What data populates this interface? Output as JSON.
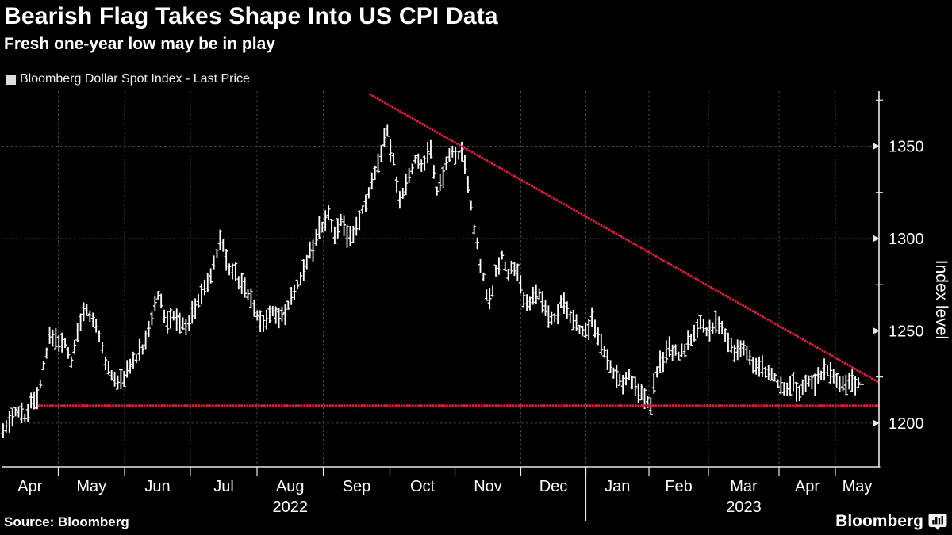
{
  "header": {
    "title": "Bearish Flag Takes Shape Into US CPI Data",
    "subtitle": "Fresh one-year low may be in play"
  },
  "legend": {
    "series_label": "Bloomberg Dollar Spot Index - Last Price",
    "swatch_color": "#dedede"
  },
  "footer": {
    "source": "Source: Bloomberg",
    "logo_text": "Bloomberg",
    "logo_icon": "bar-chart-bubble-icon"
  },
  "colors": {
    "background": "#000000",
    "bars": "#ffffff",
    "trend_red": "#d0203a",
    "grid": "#4a4a4a",
    "axis": "#e8e8e8",
    "text": "#ffffff"
  },
  "chart_data": {
    "type": "bar",
    "subtype": "ohlc-price-bars",
    "series_name": "Bloomberg Dollar Spot Index - Last Price",
    "x_axis": {
      "months": [
        "Apr",
        "May",
        "Jun",
        "Jul",
        "Aug",
        "Sep",
        "Oct",
        "Nov",
        "Dec",
        "Jan",
        "Feb",
        "Mar",
        "Apr",
        "May"
      ],
      "years": [
        {
          "label": "2022",
          "under_month_index": 4
        },
        {
          "label": "2023",
          "under_month_index": 11
        }
      ],
      "year_separator_after_month_index": 8
    },
    "y_axis": {
      "label": "Index level",
      "side": "right",
      "tick_labels": [
        1200,
        1250,
        1300,
        1350
      ],
      "minor_ticks": [
        1225,
        1275,
        1325,
        1375
      ],
      "range": [
        1176,
        1380
      ],
      "grid": "dashed"
    },
    "price_path_anchors_month_value": [
      [
        0.0,
        1193
      ],
      [
        0.1,
        1199
      ],
      [
        0.22,
        1204
      ],
      [
        0.33,
        1208
      ],
      [
        0.42,
        1203
      ],
      [
        0.52,
        1212
      ],
      [
        0.62,
        1214
      ],
      [
        0.74,
        1230
      ],
      [
        0.87,
        1248
      ],
      [
        1.0,
        1244
      ],
      [
        1.1,
        1242
      ],
      [
        1.2,
        1233
      ],
      [
        1.3,
        1252
      ],
      [
        1.41,
        1263
      ],
      [
        1.52,
        1256
      ],
      [
        1.62,
        1247
      ],
      [
        1.72,
        1233
      ],
      [
        1.82,
        1224
      ],
      [
        1.95,
        1222
      ],
      [
        2.08,
        1230
      ],
      [
        2.2,
        1237
      ],
      [
        2.32,
        1244
      ],
      [
        2.42,
        1258
      ],
      [
        2.5,
        1272
      ],
      [
        2.58,
        1262
      ],
      [
        2.66,
        1254
      ],
      [
        2.75,
        1260
      ],
      [
        2.85,
        1254
      ],
      [
        2.95,
        1250
      ],
      [
        3.05,
        1260
      ],
      [
        3.18,
        1270
      ],
      [
        3.3,
        1280
      ],
      [
        3.42,
        1295
      ],
      [
        3.47,
        1302
      ],
      [
        3.55,
        1284
      ],
      [
        3.65,
        1281
      ],
      [
        3.75,
        1277
      ],
      [
        3.87,
        1270
      ],
      [
        4.0,
        1259
      ],
      [
        4.1,
        1253
      ],
      [
        4.22,
        1262
      ],
      [
        4.33,
        1256
      ],
      [
        4.45,
        1262
      ],
      [
        4.58,
        1272
      ],
      [
        4.72,
        1284
      ],
      [
        4.85,
        1297
      ],
      [
        4.97,
        1305
      ],
      [
        5.08,
        1312
      ],
      [
        5.18,
        1302
      ],
      [
        5.28,
        1310
      ],
      [
        5.38,
        1300
      ],
      [
        5.5,
        1306
      ],
      [
        5.62,
        1318
      ],
      [
        5.75,
        1332
      ],
      [
        5.88,
        1348
      ],
      [
        5.95,
        1360
      ],
      [
        6.05,
        1342
      ],
      [
        6.15,
        1320
      ],
      [
        6.28,
        1332
      ],
      [
        6.4,
        1345
      ],
      [
        6.52,
        1338
      ],
      [
        6.62,
        1351
      ],
      [
        6.72,
        1326
      ],
      [
        6.82,
        1332
      ],
      [
        6.92,
        1347
      ],
      [
        7.02,
        1344
      ],
      [
        7.1,
        1348
      ],
      [
        7.2,
        1330
      ],
      [
        7.3,
        1302
      ],
      [
        7.4,
        1285
      ],
      [
        7.48,
        1270
      ],
      [
        7.55,
        1266
      ],
      [
        7.62,
        1282
      ],
      [
        7.72,
        1290
      ],
      [
        7.82,
        1280
      ],
      [
        7.92,
        1286
      ],
      [
        8.02,
        1270
      ],
      [
        8.12,
        1264
      ],
      [
        8.25,
        1272
      ],
      [
        8.38,
        1262
      ],
      [
        8.5,
        1256
      ],
      [
        8.62,
        1266
      ],
      [
        8.75,
        1258
      ],
      [
        8.88,
        1252
      ],
      [
        9.0,
        1248
      ],
      [
        9.1,
        1256
      ],
      [
        9.2,
        1246
      ],
      [
        9.32,
        1236
      ],
      [
        9.45,
        1227
      ],
      [
        9.58,
        1222
      ],
      [
        9.7,
        1226
      ],
      [
        9.82,
        1218
      ],
      [
        9.95,
        1213
      ],
      [
        10.03,
        1209
      ],
      [
        10.12,
        1228
      ],
      [
        10.25,
        1236
      ],
      [
        10.38,
        1240
      ],
      [
        10.52,
        1237
      ],
      [
        10.65,
        1243
      ],
      [
        10.78,
        1250
      ],
      [
        10.9,
        1254
      ],
      [
        11.02,
        1249
      ],
      [
        11.12,
        1256
      ],
      [
        11.25,
        1247
      ],
      [
        11.38,
        1238
      ],
      [
        11.5,
        1242
      ],
      [
        11.62,
        1234
      ],
      [
        11.75,
        1229
      ],
      [
        11.88,
        1226
      ],
      [
        12.0,
        1222
      ],
      [
        12.12,
        1217
      ],
      [
        12.25,
        1223
      ],
      [
        12.38,
        1216
      ],
      [
        12.52,
        1224
      ],
      [
        12.65,
        1221
      ],
      [
        12.78,
        1227
      ],
      [
        12.9,
        1229
      ],
      [
        13.02,
        1224
      ],
      [
        13.15,
        1220
      ],
      [
        13.3,
        1223
      ],
      [
        13.42,
        1221
      ]
    ],
    "trend_lines": [
      {
        "name": "descending-resistance",
        "style": "dotted",
        "color": "#d0203a",
        "from": {
          "month": 5.705,
          "value": 1378
        },
        "to": {
          "month": 14.0,
          "value": 1222
        }
      },
      {
        "name": "horizontal-support",
        "style": "dotted",
        "color": "#d0203a",
        "value": 1209.5,
        "from_month": 0.657,
        "to_month": 14.0
      }
    ],
    "key_points": [
      {
        "label": "period-start",
        "month": "Apr 2022",
        "value": 1193
      },
      {
        "label": "peak",
        "month": "late Sep 2022",
        "value": 1362
      },
      {
        "label": "one-year-low-support",
        "value": 1210
      },
      {
        "label": "last-price",
        "month": "May 2023",
        "value": 1221
      }
    ]
  }
}
